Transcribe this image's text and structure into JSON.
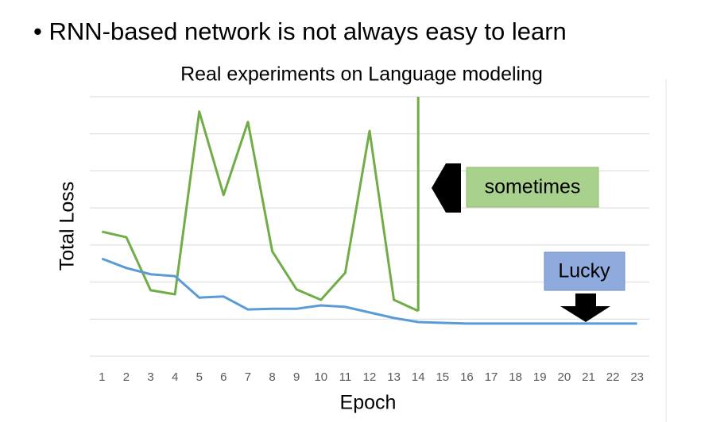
{
  "heading": "• RNN-based network is not always easy to learn",
  "chart_data": {
    "type": "line",
    "title": "Real experiments on Language modeling",
    "x_label": "Epoch",
    "y_label": "Total Loss",
    "categories": [
      "1",
      "2",
      "3",
      "4",
      "5",
      "6",
      "7",
      "8",
      "9",
      "10",
      "11",
      "12",
      "13",
      "14",
      "15",
      "16",
      "17",
      "18",
      "19",
      "20",
      "21",
      "22",
      "23"
    ],
    "series": [
      {
        "name": "sometimes",
        "color": "#70ad47",
        "values": [
          3.36,
          3.21,
          1.78,
          1.67,
          6.6,
          4.35,
          6.32,
          2.83,
          1.8,
          1.52,
          2.25,
          6.08,
          1.52,
          1.22,
          null,
          null,
          null,
          null,
          null,
          null,
          null,
          null,
          null
        ]
      },
      {
        "name": "Lucky",
        "color": "#5b9bd5",
        "values": [
          2.63,
          2.38,
          2.21,
          2.16,
          1.58,
          1.61,
          1.26,
          1.28,
          1.28,
          1.37,
          1.33,
          1.18,
          1.03,
          0.92,
          0.9,
          0.88,
          0.88,
          0.88,
          0.88,
          0.88,
          0.88,
          0.88,
          0.88
        ]
      }
    ],
    "ylim": [
      0,
      7
    ],
    "yticks": [
      0,
      1,
      2,
      3,
      4,
      5,
      6,
      7
    ],
    "grid": true
  }
}
